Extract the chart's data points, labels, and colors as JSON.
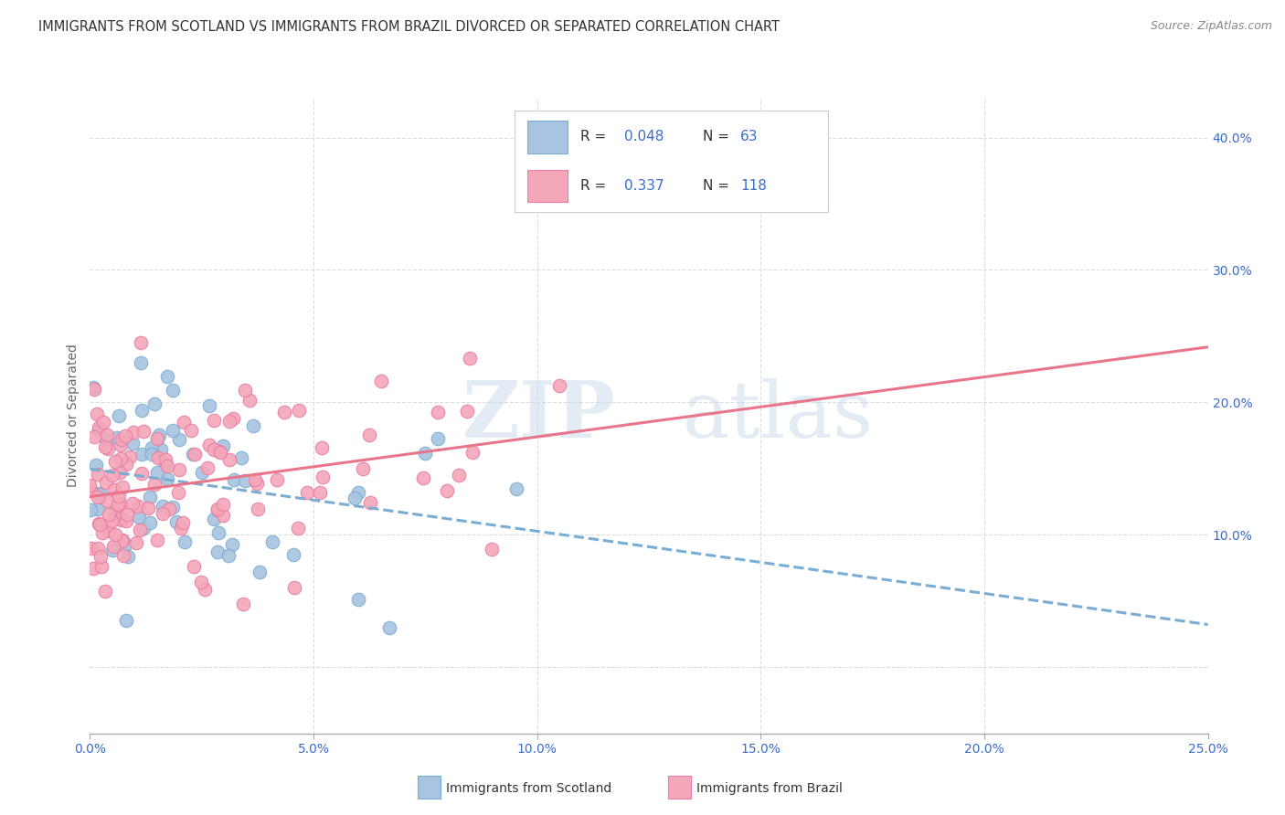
{
  "title": "IMMIGRANTS FROM SCOTLAND VS IMMIGRANTS FROM BRAZIL DIVORCED OR SEPARATED CORRELATION CHART",
  "source": "Source: ZipAtlas.com",
  "ylabel": "Divorced or Separated",
  "y_ticks": [
    0.0,
    0.1,
    0.2,
    0.3,
    0.4
  ],
  "y_tick_labels": [
    "",
    "10.0%",
    "20.0%",
    "30.0%",
    "40.0%"
  ],
  "x_min": 0.0,
  "x_max": 0.25,
  "y_min": -0.05,
  "y_max": 0.43,
  "scotland_color": "#a8c4e0",
  "scotland_edge": "#7aadd4",
  "brazil_color": "#f4a7b9",
  "brazil_edge": "#e87ea0",
  "scotland_R": 0.048,
  "scotland_N": 63,
  "brazil_R": 0.337,
  "brazil_N": 118,
  "legend_label_scotland": "Immigrants from Scotland",
  "legend_label_brazil": "Immigrants from Brazil",
  "watermark_zip": "ZIP",
  "watermark_atlas": "atlas",
  "background_color": "#ffffff",
  "grid_color": "#dddddd",
  "r_color": "#3a6ccc",
  "scotland_trend_color": "#7aadd4",
  "brazil_trend_color": "#e8758a",
  "title_color": "#333333",
  "source_color": "#888888",
  "axis_color": "#aaaaaa",
  "tick_color": "#3a6ccc"
}
